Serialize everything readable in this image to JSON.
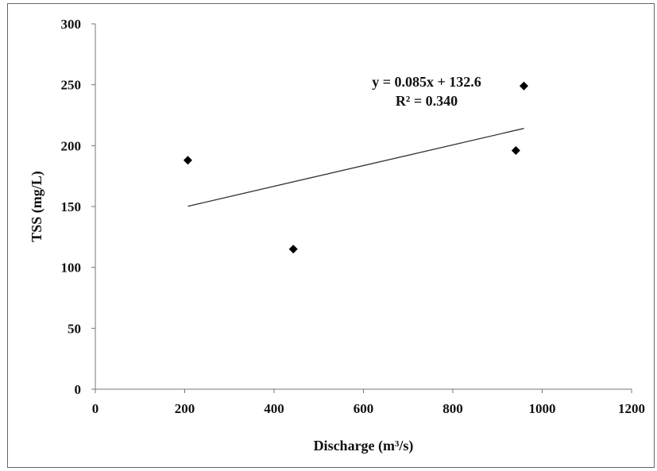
{
  "chart_data": {
    "type": "scatter",
    "title": "",
    "xlabel": "Discharge (m³/s)",
    "ylabel": "TSS (mg/L)",
    "xlim": [
      0,
      1200
    ],
    "ylim": [
      0,
      300
    ],
    "xticks": [
      0,
      200,
      400,
      600,
      800,
      1000,
      1200
    ],
    "yticks": [
      0,
      50,
      100,
      150,
      200,
      250,
      300
    ],
    "grid": false,
    "series": [
      {
        "x": [
          207,
          443,
          941,
          959
        ],
        "y": [
          188,
          115,
          196,
          249
        ],
        "marker": "diamond",
        "color": "#000000"
      }
    ],
    "trendline": {
      "type": "linear",
      "x_range": [
        207,
        959
      ],
      "equation": "y = 0.085x + 132.6",
      "r_squared": "R² = 0.340",
      "color": "#333333"
    }
  }
}
